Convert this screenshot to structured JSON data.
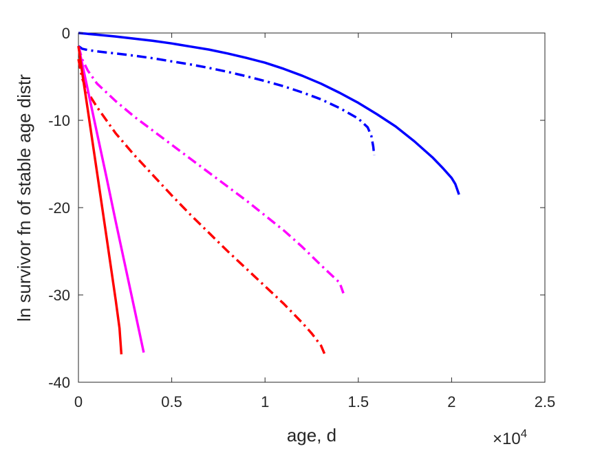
{
  "chart_data": {
    "type": "line",
    "title": "",
    "xlabel": "age, d",
    "ylabel": "ln survivor fn of stable age distr",
    "x_multiplier": {
      "base": "×10",
      "exponent": "4"
    },
    "xlim": [
      0,
      25000
    ],
    "ylim": [
      -40,
      0
    ],
    "x_ticks": [
      0,
      5000,
      10000,
      15000,
      20000,
      25000
    ],
    "x_tick_labels": [
      "0",
      "0.5",
      "1",
      "1.5",
      "2",
      "2.5"
    ],
    "y_ticks": [
      0,
      -10,
      -20,
      -30,
      -40
    ],
    "y_tick_labels": [
      "0",
      "-10",
      "-20",
      "-30",
      "-40"
    ],
    "grid": false,
    "box": true,
    "series": [
      {
        "color": "#0000FF",
        "style": "solid",
        "x": [
          0,
          1000,
          2000,
          3000,
          4000,
          5000,
          6000,
          7000,
          8000,
          9000,
          10000,
          11000,
          12000,
          13000,
          14000,
          15000,
          16000,
          17000,
          18000,
          19000,
          19500,
          20000,
          20200,
          20400
        ],
        "y": [
          0,
          -0.2,
          -0.4,
          -0.65,
          -0.9,
          -1.2,
          -1.55,
          -1.9,
          -2.35,
          -2.85,
          -3.4,
          -4.1,
          -4.9,
          -5.8,
          -6.85,
          -8.0,
          -9.3,
          -10.7,
          -12.4,
          -14.3,
          -15.4,
          -16.6,
          -17.3,
          -18.5
        ]
      },
      {
        "color": "#0000FF",
        "style": "dashdot",
        "x": [
          0,
          200,
          500,
          1000,
          2000,
          3000,
          4000,
          5000,
          6000,
          7000,
          8000,
          9000,
          10000,
          11000,
          12000,
          13000,
          14000,
          15000,
          15500,
          15700,
          15800,
          15850
        ],
        "y": [
          -1.5,
          -1.8,
          -1.95,
          -2.1,
          -2.35,
          -2.6,
          -2.9,
          -3.25,
          -3.6,
          -4.0,
          -4.45,
          -4.95,
          -5.5,
          -6.1,
          -6.8,
          -7.6,
          -8.6,
          -9.8,
          -10.8,
          -11.8,
          -13.0,
          -14.0
        ]
      },
      {
        "color": "#FF00FF",
        "style": "dashdot",
        "x": [
          0,
          200,
          500,
          1000,
          2000,
          3000,
          4000,
          5000,
          6000,
          7000,
          8000,
          9000,
          10000,
          11000,
          12000,
          13000,
          13500,
          14000,
          14200
        ],
        "y": [
          -1.5,
          -3.0,
          -4.3,
          -5.8,
          -7.8,
          -9.6,
          -11.2,
          -12.8,
          -14.4,
          -16.0,
          -17.6,
          -19.2,
          -20.9,
          -22.6,
          -24.5,
          -26.6,
          -27.6,
          -28.6,
          -29.8
        ]
      },
      {
        "color": "#FF0000",
        "style": "dashdot",
        "x": [
          0,
          200,
          500,
          1000,
          2000,
          3000,
          4000,
          5000,
          6000,
          7000,
          8000,
          9000,
          10000,
          11000,
          12000,
          12500,
          13000,
          13200
        ],
        "y": [
          -3.0,
          -5.2,
          -6.8,
          -8.5,
          -11.5,
          -14.0,
          -16.3,
          -18.6,
          -20.8,
          -22.9,
          -25.0,
          -27.0,
          -29.0,
          -31.0,
          -33.2,
          -34.4,
          -35.8,
          -36.8
        ]
      },
      {
        "color": "#FF00FF",
        "style": "solid",
        "x": [
          0,
          200,
          500,
          1000,
          1500,
          2000,
          2500,
          3000,
          3300,
          3500
        ],
        "y": [
          -1.5,
          -3.5,
          -6.5,
          -11.5,
          -16.5,
          -21.6,
          -26.6,
          -31.6,
          -34.6,
          -36.6
        ]
      },
      {
        "color": "#FF0000",
        "style": "solid",
        "x": [
          0,
          200,
          500,
          1000,
          1500,
          2000,
          2200,
          2300
        ],
        "y": [
          -1.5,
          -4.5,
          -8.8,
          -16.0,
          -23.3,
          -30.6,
          -33.8,
          -36.8
        ]
      }
    ]
  }
}
